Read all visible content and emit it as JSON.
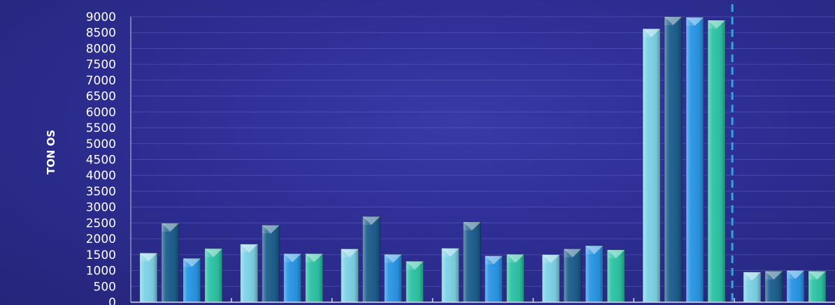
{
  "chart_data": {
    "type": "bar",
    "ylabel": "TON OS",
    "ylim": [
      0,
      9000
    ],
    "ytick_step": 500,
    "grid": true,
    "categories": [
      "",
      "",
      "",
      "",
      "",
      "",
      ""
    ],
    "series": [
      {
        "values": [
          1550,
          1830,
          1680,
          1700,
          1500,
          8620,
          950
        ],
        "color": "#7fd3e8"
      },
      {
        "values": [
          2490,
          2430,
          2700,
          2530,
          1680,
          9000,
          980
        ],
        "color": "#1e5f8e"
      },
      {
        "values": [
          1380,
          1530,
          1510,
          1460,
          1780,
          8980,
          1000
        ],
        "color": "#2a96e6"
      },
      {
        "values": [
          1690,
          1530,
          1290,
          1510,
          1650,
          8890,
          980
        ],
        "color": "#2ec4a6"
      }
    ],
    "marker_line": {
      "after_category_index": 5,
      "color": "#3aa0e0"
    }
  }
}
